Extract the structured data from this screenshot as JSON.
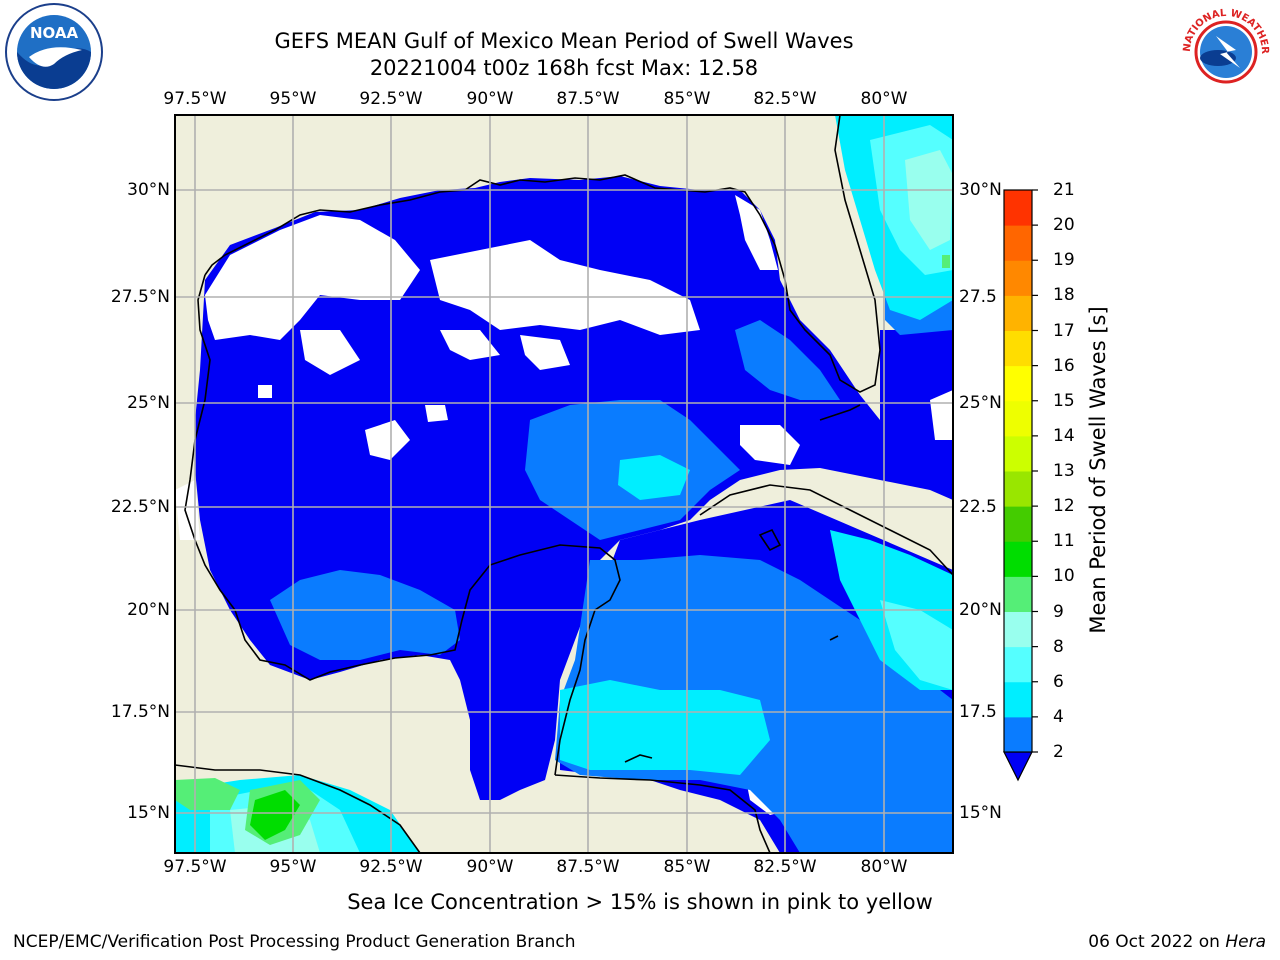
{
  "header": {
    "title_line1": "GEFS MEAN Gulf of Mexico Mean Period of Swell Waves",
    "title_line2": "20221004 t00z 168h fcst   Max: 12.58"
  },
  "map": {
    "lon_labels": [
      "97.5°W",
      "95°W",
      "92.5°W",
      "90°W",
      "87.5°W",
      "85°W",
      "82.5°W",
      "80°W"
    ],
    "lat_labels_left": [
      "30°N",
      "27.5°N",
      "25°N",
      "22.5°N",
      "20°N",
      "17.5°N",
      "15°N"
    ],
    "lat_labels_right": [
      "30°N",
      "27.5",
      "25°N",
      "22.5",
      "20°N",
      "17.5",
      "15°N"
    ],
    "land_color": "#efefdc",
    "ocean_levels": [
      {
        "range": "0-2",
        "color": "#ffffff"
      },
      {
        "range": "<2",
        "color": "#0000f5"
      },
      {
        "range": "2-4",
        "color": "#0a7cff"
      },
      {
        "range": "4-6",
        "color": "#00eeff"
      },
      {
        "range": "6-8",
        "color": "#55ffff"
      },
      {
        "range": "8-9",
        "color": "#99ffee"
      },
      {
        "range": "9-10",
        "color": "#55ee77"
      },
      {
        "range": "10-11",
        "color": "#00dd00"
      }
    ]
  },
  "colorbar": {
    "title": "Mean Period of Swell Waves [s]",
    "ticks": [
      "2",
      "4",
      "6",
      "8",
      "9",
      "10",
      "11",
      "12",
      "13",
      "14",
      "15",
      "16",
      "17",
      "18",
      "19",
      "20",
      "21"
    ],
    "colors": [
      "#0a7cff",
      "#00eeff",
      "#55ffff",
      "#99ffee",
      "#55ee77",
      "#00dd00",
      "#44cc00",
      "#99e600",
      "#ccff00",
      "#eeff00",
      "#ffff00",
      "#ffdd00",
      "#ffb300",
      "#ff8800",
      "#ff6600",
      "#ff3300",
      "#ff0000"
    ],
    "extend_color": "#0000f5"
  },
  "caption": "Sea Ice Concentration > 15% is shown in pink to yellow",
  "footer": {
    "left": "NCEP/EMC/Verification Post Processing Product Generation Branch",
    "right_prefix": "06 Oct 2022 on ",
    "right_italic": "Hera"
  },
  "logos": {
    "noaa_text": "NOAA",
    "nws_text": "NATIONAL WEATHER SERVICE"
  }
}
